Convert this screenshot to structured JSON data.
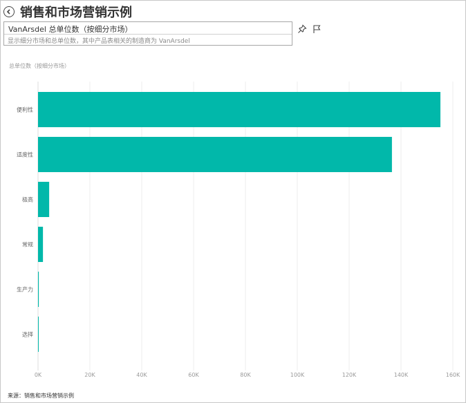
{
  "header": {
    "title": "销售和市场营销示例"
  },
  "qa": {
    "question": "VanArsdel 总单位数（按细分市场）",
    "hint": "显示细分市场和总单位数，其中产品表相关的制造商为 VanArsdel"
  },
  "icons": {
    "back": "back-arrow-icon",
    "pin": "pin-icon",
    "flag": "flag-icon"
  },
  "chart_data": {
    "type": "bar",
    "orientation": "horizontal",
    "title": "总单位数（按细分市场）",
    "categories": [
      "便利性",
      "适度性",
      "极高",
      "常规",
      "生产力",
      "选择"
    ],
    "values": [
      155200,
      136500,
      4300,
      1900,
      300,
      200
    ],
    "xlim": [
      0,
      160000
    ],
    "xticks": [
      "0K",
      "20K",
      "40K",
      "60K",
      "80K",
      "100K",
      "120K",
      "140K",
      "160K"
    ],
    "grid": true,
    "bar_color": "#01B8AA"
  },
  "footer": {
    "source": "来源：销售和市场营销示例"
  }
}
